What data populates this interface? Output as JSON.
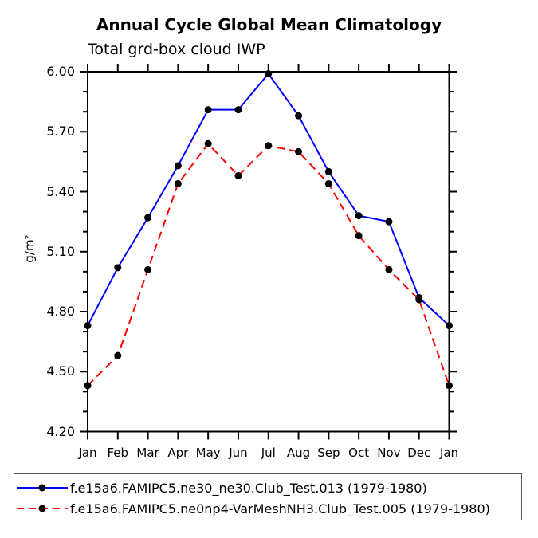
{
  "title": "Annual Cycle Global Mean Climatology",
  "subtitle": "Total grd-box cloud IWP",
  "colors": {
    "background": "#ffffff",
    "axis": "#000000",
    "text": "#000000",
    "series1": "#0000ff",
    "series2": "#ff0000",
    "marker": "#000000",
    "legend_border": "#555555"
  },
  "chart_data": {
    "type": "line",
    "title": "Annual Cycle Global Mean Climatology",
    "subtitle": "Total grd-box cloud IWP",
    "xlabel": "",
    "ylabel": "g/m²",
    "categories": [
      "Jan",
      "Feb",
      "Mar",
      "Apr",
      "May",
      "Jun",
      "Jul",
      "Aug",
      "Sep",
      "Oct",
      "Nov",
      "Dec",
      "Jan"
    ],
    "ylim": [
      4.2,
      6.0
    ],
    "ytick_labels": [
      "4.20",
      "4.50",
      "4.80",
      "5.10",
      "5.40",
      "5.70",
      "6.00"
    ],
    "ytick_values": [
      4.2,
      4.5,
      4.8,
      5.1,
      5.4,
      5.7,
      6.0
    ],
    "minor_tick_interval": 0.1,
    "grid": false,
    "legend_position": "bottom",
    "series": [
      {
        "name": "f.e15a6.FAMIPC5.ne30_ne30.Club_Test.013 (1979-1980)",
        "color": "#0000ff",
        "style": "solid",
        "marker": "circle",
        "marker_color": "#000000",
        "values": [
          4.73,
          5.02,
          5.27,
          5.53,
          5.81,
          5.81,
          5.99,
          5.78,
          5.5,
          5.28,
          5.25,
          4.87,
          4.73
        ]
      },
      {
        "name": "f.e15a6.FAMIPC5.ne0np4-VarMeshNH3.Club_Test.005 (1979-1980)",
        "color": "#ff0000",
        "style": "dashed",
        "marker": "circle",
        "marker_color": "#000000",
        "values": [
          4.43,
          4.58,
          5.01,
          5.44,
          5.64,
          5.48,
          5.63,
          5.6,
          5.44,
          5.18,
          5.01,
          4.86,
          4.43
        ]
      }
    ]
  }
}
